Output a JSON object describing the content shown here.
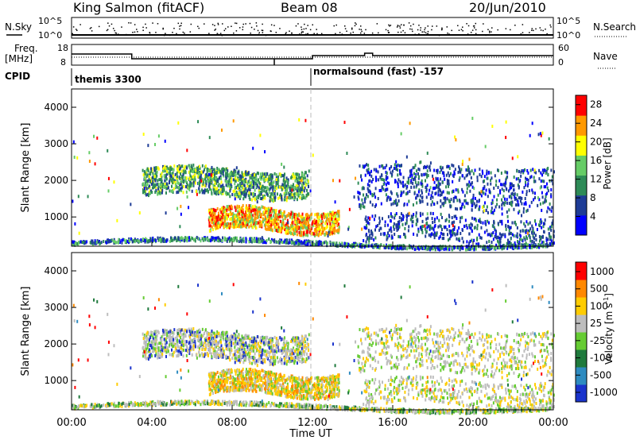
{
  "header": {
    "title_left": "King Salmon (fitACF)",
    "title_mid": "Beam 08",
    "title_right": "20/Jun/2010"
  },
  "strips": {
    "nsky_label": "N.Sky",
    "nsky_ticks": [
      "10^5",
      "10^0"
    ],
    "nsearch_label": "N.Search",
    "nsearch_ticks": [
      "10^5",
      "10^0"
    ],
    "freq_label": "Freq.",
    "freq_unit": "[MHz]",
    "freq_ticks": [
      "18",
      "8"
    ],
    "nave_label": "Nave",
    "nave_ticks": [
      "60",
      "0"
    ],
    "cpid_label": "CPID",
    "cpid_segments": [
      {
        "text": "themis 3300",
        "start_hour": 0
      },
      {
        "text": "normalsound (fast) -157",
        "start_hour": 12
      }
    ]
  },
  "chart_data": [
    {
      "type": "heatmap",
      "name": "power-panel",
      "ylabel": "Slant Range [km]",
      "xlabel": "Time UT",
      "xlim": [
        0,
        24
      ],
      "ylim": [
        200,
        4500
      ],
      "yticks": [
        1000,
        2000,
        3000,
        4000
      ],
      "ytick_labels": [
        "1000",
        "2000",
        "3000",
        "4000"
      ],
      "colorbar": {
        "label": "Power [dB]",
        "ticks": [
          "4",
          "8",
          "12",
          "16",
          "20",
          "24",
          "28"
        ],
        "tick_values": [
          4,
          8,
          12,
          16,
          20,
          24,
          28
        ],
        "range": [
          0,
          30
        ],
        "colors": [
          "#0000ff",
          "#1e3c96",
          "#2e8b57",
          "#66cc66",
          "#ffff00",
          "#ff9900",
          "#ff0000"
        ]
      },
      "bands": [
        {
          "t_start": 3.5,
          "t_end": 11.8,
          "range_start": 1600,
          "range_end": 2300,
          "level": "low-mid"
        },
        {
          "t_start": 6.8,
          "t_end": 13.3,
          "range_start": 600,
          "range_end": 1200,
          "level": "high"
        },
        {
          "t_start": 14.2,
          "t_end": 24.0,
          "range_start": 900,
          "range_end": 2400,
          "level": "low"
        }
      ]
    },
    {
      "type": "heatmap",
      "name": "velocity-panel",
      "ylabel": "Slant Range [km]",
      "xlabel": "Time UT",
      "xlim": [
        0,
        24
      ],
      "ylim": [
        200,
        4500
      ],
      "yticks": [
        1000,
        2000,
        3000,
        4000
      ],
      "ytick_labels": [
        "1000",
        "2000",
        "3000",
        "4000"
      ],
      "colorbar": {
        "label": "Velocity [m s",
        "label_sup": "-1",
        "label_end": "]",
        "ticks": [
          "1000",
          "500",
          "100",
          "25",
          "-25",
          "-100",
          "-500",
          "-1000"
        ],
        "colors": [
          "#1a33cc",
          "#2e8bc0",
          "#1f7a3d",
          "#66cc33",
          "#bdbdbd",
          "#ffcc00",
          "#ff8800",
          "#ff0000"
        ]
      }
    }
  ],
  "xaxis": {
    "ticks": [
      "00:00",
      "04:00",
      "08:00",
      "12:00",
      "16:00",
      "20:00",
      "00:00"
    ],
    "label": "Time UT"
  }
}
